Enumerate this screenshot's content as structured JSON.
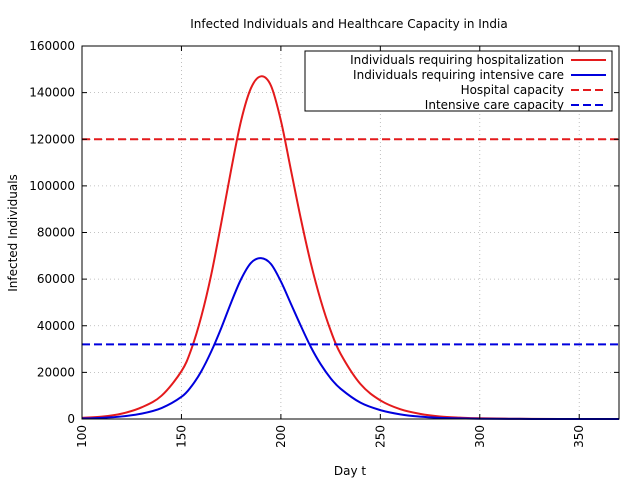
{
  "chart_data": {
    "type": "line",
    "title": "Infected Individuals and Healthcare Capacity in India",
    "xlabel": "Day t",
    "ylabel": "Infected Individuals",
    "xlim": [
      100,
      370
    ],
    "ylim": [
      0,
      160000
    ],
    "xticks": [
      100,
      150,
      200,
      250,
      300,
      350
    ],
    "yticks": [
      0,
      20000,
      40000,
      60000,
      80000,
      100000,
      120000,
      140000,
      160000
    ],
    "grid": true,
    "legend_position": "top-right",
    "series": [
      {
        "name": "Individuals requiring hospitalization",
        "color": "#e41a1c",
        "style": "solid",
        "x": [
          100,
          110,
          120,
          130,
          140,
          150,
          155,
          160,
          165,
          170,
          175,
          180,
          185,
          190,
          195,
          200,
          205,
          210,
          215,
          220,
          225,
          230,
          240,
          250,
          260,
          270,
          280,
          290,
          300,
          320,
          340,
          370
        ],
        "y": [
          500,
          1000,
          2300,
          5000,
          10000,
          20500,
          30000,
          44000,
          62000,
          84000,
          107000,
          128000,
          142000,
          147000,
          143000,
          128000,
          107000,
          86000,
          67000,
          51000,
          38000,
          28000,
          15000,
          8000,
          4200,
          2200,
          1100,
          600,
          300,
          80,
          20,
          0
        ]
      },
      {
        "name": "Individuals requiring intensive care",
        "color": "#0000dd",
        "style": "solid",
        "x": [
          100,
          110,
          120,
          130,
          140,
          150,
          155,
          160,
          165,
          170,
          175,
          180,
          185,
          190,
          195,
          200,
          205,
          210,
          215,
          220,
          225,
          230,
          240,
          250,
          260,
          270,
          280,
          290,
          300,
          320,
          340,
          370
        ],
        "y": [
          200,
          500,
          1100,
          2300,
          4700,
          9500,
          14000,
          20500,
          29000,
          39000,
          50000,
          60000,
          67000,
          69000,
          66500,
          59000,
          49500,
          40000,
          31000,
          23500,
          17500,
          13000,
          7000,
          3800,
          2000,
          1000,
          500,
          250,
          120,
          30,
          10,
          0
        ]
      },
      {
        "name": "Hospital capacity",
        "color": "#e41a1c",
        "style": "dashed",
        "x": [
          100,
          370
        ],
        "y": [
          120000,
          120000
        ]
      },
      {
        "name": "Intensive care capacity",
        "color": "#0000dd",
        "style": "dashed",
        "x": [
          100,
          370
        ],
        "y": [
          32000,
          32000
        ]
      }
    ]
  }
}
